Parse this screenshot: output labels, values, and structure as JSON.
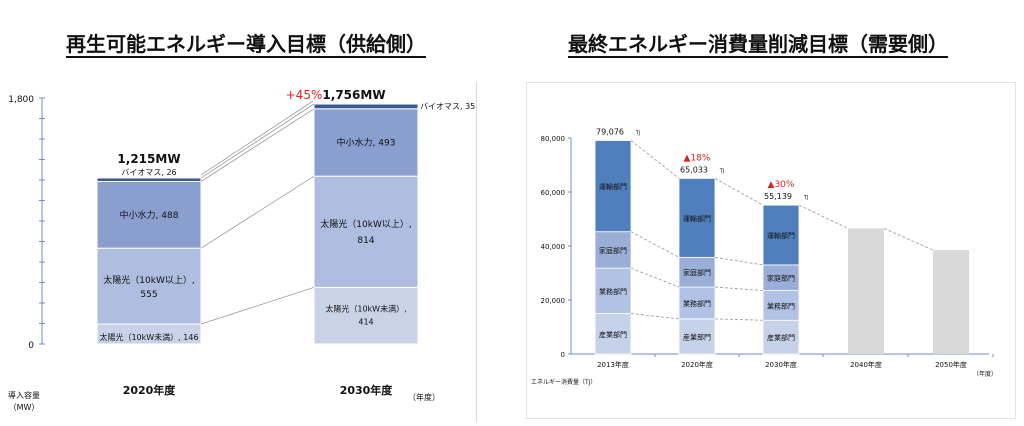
{
  "titles": {
    "left": "再生可能エネルギー導入目標（供給側）",
    "right": "最終エネルギー消費量削減目標（需要側）"
  },
  "chart_data": [
    {
      "type": "bar",
      "stacked": true,
      "categories": [
        "2020年度",
        "2030年度"
      ],
      "series": [
        {
          "name": "太陽光（10kW未満）",
          "labels": [
            "太陽光（10kW未満）, 146",
            "太陽光（10kW未満）,\n414"
          ],
          "values": [
            146,
            414
          ],
          "color": "#c9d3e8"
        },
        {
          "name": "太陽光（10kW以上）",
          "labels": [
            "太陽光（10kW以上）,\n555",
            "太陽光（10kW以上）,\n814"
          ],
          "values": [
            555,
            814
          ],
          "color": "#aebde0"
        },
        {
          "name": "中小水力",
          "labels": [
            "中小水力, 488",
            "中小水力, 493"
          ],
          "values": [
            488,
            493
          ],
          "color": "#8b9fcf"
        },
        {
          "name": "バイオマス",
          "labels": [
            "バイオマス, 26",
            "バイオマス, 35"
          ],
          "values": [
            26,
            35
          ],
          "color": "#3b5a92"
        }
      ],
      "totals": [
        "1,215MW",
        "1,756MW"
      ],
      "change_label": "+45%",
      "y_ticks": [
        "0",
        "1,800"
      ],
      "ylim": [
        0,
        1800
      ],
      "ylabel": "導入容量\n（MW）",
      "xunit": "（年度）",
      "colors": {
        "accent": "#e02020"
      }
    },
    {
      "type": "bar",
      "stacked": true,
      "categories": [
        "2013年度",
        "2020年度",
        "2030年度",
        "2040年度",
        "2050年度"
      ],
      "series": [
        {
          "name": "産業部門",
          "values": [
            15000,
            13000,
            12500,
            null,
            null
          ],
          "color": "#c6d2ea"
        },
        {
          "name": "業務部門",
          "values": [
            16800,
            11800,
            11000,
            null,
            null
          ],
          "color": "#b2c2e4"
        },
        {
          "name": "家庭部門",
          "values": [
            13500,
            11000,
            9500,
            null,
            null
          ],
          "color": "#9aaed8"
        },
        {
          "name": "運輸部門",
          "values": [
            33776,
            29233,
            22139,
            null,
            null
          ],
          "color": "#4f7fbd"
        }
      ],
      "projection": {
        "name": "",
        "values": [
          null,
          null,
          null,
          46500,
          38500
        ],
        "color": "#d9d9d9"
      },
      "totals": [
        "79,076",
        "65,033",
        "55,139"
      ],
      "total_unit": "TJ",
      "change_labels": [
        "▲18%",
        "▲30%"
      ],
      "y_ticks": [
        "0",
        "20,000",
        "40,000",
        "60,000",
        "80,000"
      ],
      "ylim": [
        0,
        80000
      ],
      "ylabel": "エネルギー消費量（TJ）",
      "xunit": "（年度）",
      "colors": {
        "accent": "#e02020"
      }
    }
  ]
}
